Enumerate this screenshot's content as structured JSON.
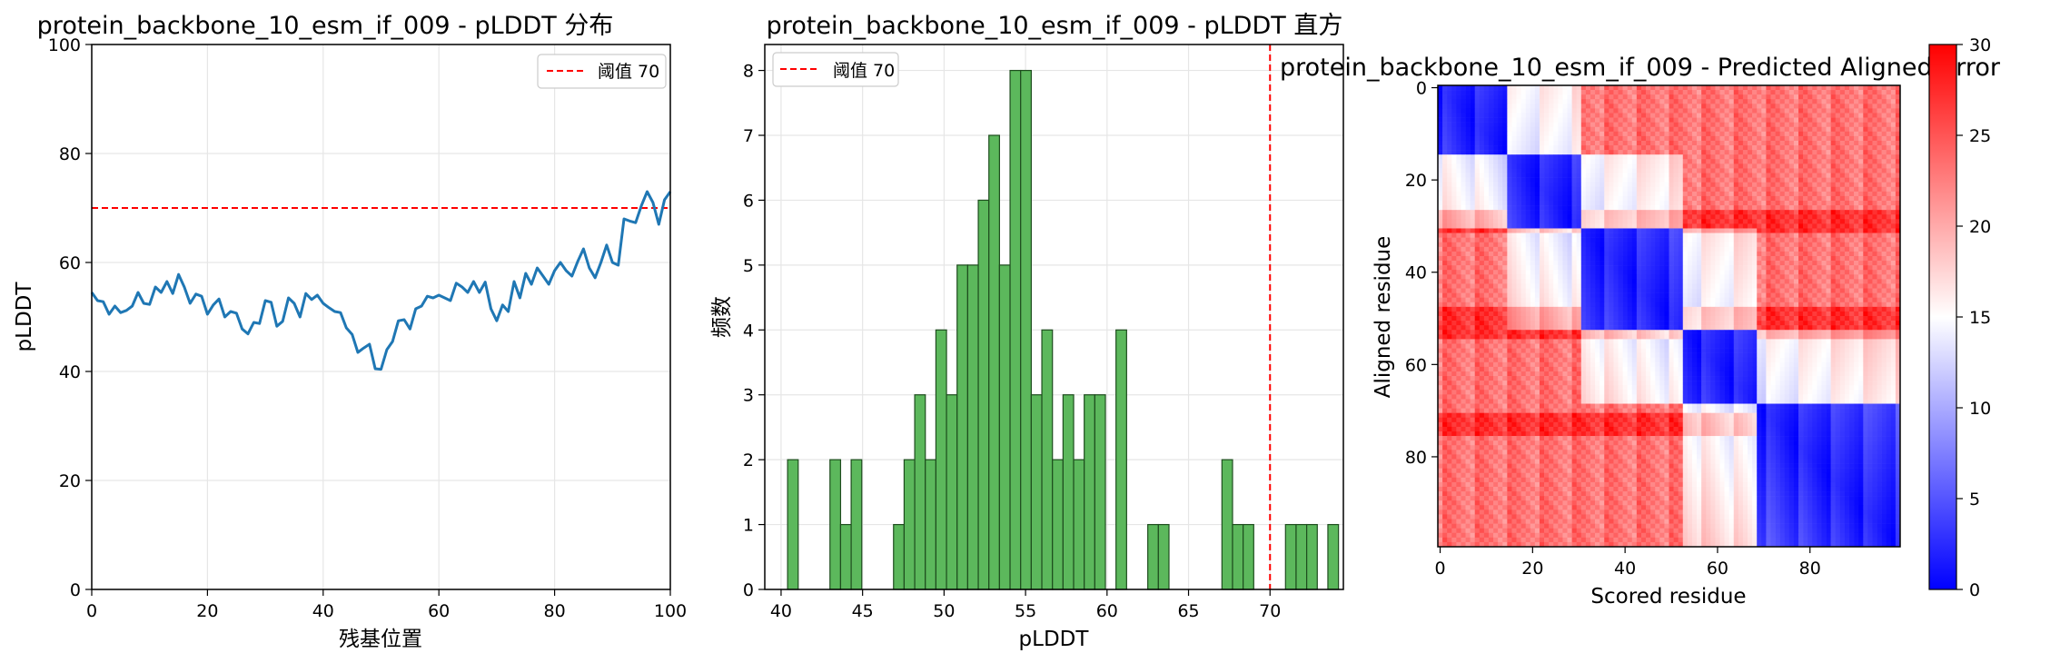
{
  "colors": {
    "line": "#1f77b4",
    "threshold": "#ff0000",
    "hist_fill": "#5cb85c",
    "hist_edge": "#1e4d1e",
    "grid": "#e6e6e6",
    "cmap_low": "#0000ff",
    "cmap_mid": "#ffffff",
    "cmap_high": "#ff0000"
  },
  "chart_data": [
    {
      "type": "line",
      "title": "protein_backbone_10_esm_if_009 - pLDDT 分布",
      "xlabel": "残基位置",
      "ylabel": "pLDDT",
      "xlim": [
        0,
        100
      ],
      "ylim": [
        0,
        100
      ],
      "xticks": [
        "0",
        "20",
        "40",
        "60",
        "80",
        "100"
      ],
      "yticks": [
        "0",
        "20",
        "40",
        "60",
        "80",
        "100"
      ],
      "grid": true,
      "legend": {
        "position": "top-right",
        "entries": [
          "阈值 70"
        ]
      },
      "threshold": 70,
      "series": [
        {
          "x": [
            0,
            1,
            2,
            3,
            4,
            5,
            6,
            7,
            8,
            9,
            10,
            11,
            12,
            13,
            14,
            15,
            16,
            17,
            18,
            19,
            20,
            21,
            22,
            23,
            24,
            25,
            26,
            27,
            28,
            29,
            30,
            31,
            32,
            33,
            34,
            35,
            36,
            37,
            38,
            39,
            40,
            41,
            42,
            43,
            44,
            45,
            46,
            47,
            48,
            49,
            50,
            51,
            52,
            53,
            54,
            55,
            56,
            57,
            58,
            59,
            60,
            61,
            62,
            63,
            64,
            65,
            66,
            67,
            68,
            69,
            70,
            71,
            72,
            73,
            74,
            75,
            76,
            77,
            78,
            79,
            80,
            81,
            82,
            83,
            84,
            85,
            86,
            87,
            88,
            89,
            90,
            91,
            92,
            93,
            94,
            95,
            96,
            97,
            98,
            99,
            100
          ],
          "y": [
            54.5,
            53,
            52.8,
            50.5,
            52,
            50.8,
            51.2,
            52,
            54.5,
            52.5,
            52.3,
            55.5,
            54.5,
            56.5,
            54.3,
            57.8,
            55.5,
            52.5,
            54.2,
            53.8,
            50.5,
            52.2,
            53.3,
            50,
            51,
            50.7,
            47.8,
            46.9,
            49,
            48.8,
            53,
            52.7,
            48.3,
            49.2,
            53.5,
            52.5,
            50,
            54.3,
            53.2,
            54,
            52.5,
            51.7,
            51,
            50.8,
            48,
            46.8,
            43.5,
            44.3,
            45,
            40.5,
            40.4,
            44,
            45.5,
            49.3,
            49.5,
            47.8,
            51.5,
            52,
            53.8,
            53.5,
            54,
            53.5,
            53,
            56.2,
            55.5,
            54.5,
            56.5,
            54.5,
            56.4,
            51.5,
            49.3,
            52.2,
            51,
            56.5,
            53.5,
            58,
            56,
            59,
            57.5,
            56,
            58.5,
            60,
            58.5,
            57.5,
            60.2,
            62.5,
            59,
            57.2,
            60,
            63.2,
            60,
            59.5,
            68,
            67.6,
            67.3,
            70.4,
            73,
            71,
            67,
            71.5,
            73
          ]
        }
      ]
    },
    {
      "type": "bar",
      "title": "protein_backbone_10_esm_if_009 - pLDDT 直方",
      "xlabel": "pLDDT",
      "ylabel": "频数",
      "xlim": [
        39,
        74.5
      ],
      "ylim": [
        0,
        8.4
      ],
      "xticks": [
        "40",
        "45",
        "50",
        "55",
        "60",
        "65",
        "70"
      ],
      "yticks": [
        "0",
        "1",
        "2",
        "3",
        "4",
        "5",
        "6",
        "7",
        "8"
      ],
      "grid": true,
      "legend": {
        "position": "top-left",
        "entries": [
          "阈值 70"
        ]
      },
      "threshold": 70,
      "bin_width": 0.65,
      "bin_start": 40.4,
      "counts": [
        2,
        0,
        0,
        0,
        2,
        1,
        2,
        0,
        0,
        0,
        1,
        2,
        3,
        2,
        4,
        3,
        5,
        5,
        6,
        7,
        5,
        8,
        8,
        3,
        4,
        2,
        3,
        2,
        3,
        3,
        0,
        4,
        0,
        0,
        1,
        1,
        0,
        0,
        0,
        0,
        0,
        2,
        1,
        1,
        0,
        0,
        0,
        1,
        1,
        1,
        0,
        1
      ]
    },
    {
      "type": "heatmap",
      "title": "protein_backbone_10_esm_if_009 - Predicted Aligned Error",
      "xlabel": "Scored residue",
      "ylabel": "Aligned residue",
      "size": 100,
      "xticks": [
        "0",
        "20",
        "40",
        "60",
        "80"
      ],
      "yticks": [
        "0",
        "20",
        "40",
        "60",
        "80"
      ],
      "colorbar": {
        "range": [
          0,
          30
        ],
        "ticks": [
          "0",
          "5",
          "10",
          "15",
          "20",
          "25",
          "30"
        ]
      },
      "domains": [
        [
          0,
          14
        ],
        [
          15,
          30
        ],
        [
          31,
          52
        ],
        [
          53,
          68
        ],
        [
          69,
          99
        ]
      ],
      "high_rows": [
        [
          27,
          31
        ],
        [
          48,
          54
        ],
        [
          71,
          75
        ]
      ]
    }
  ]
}
